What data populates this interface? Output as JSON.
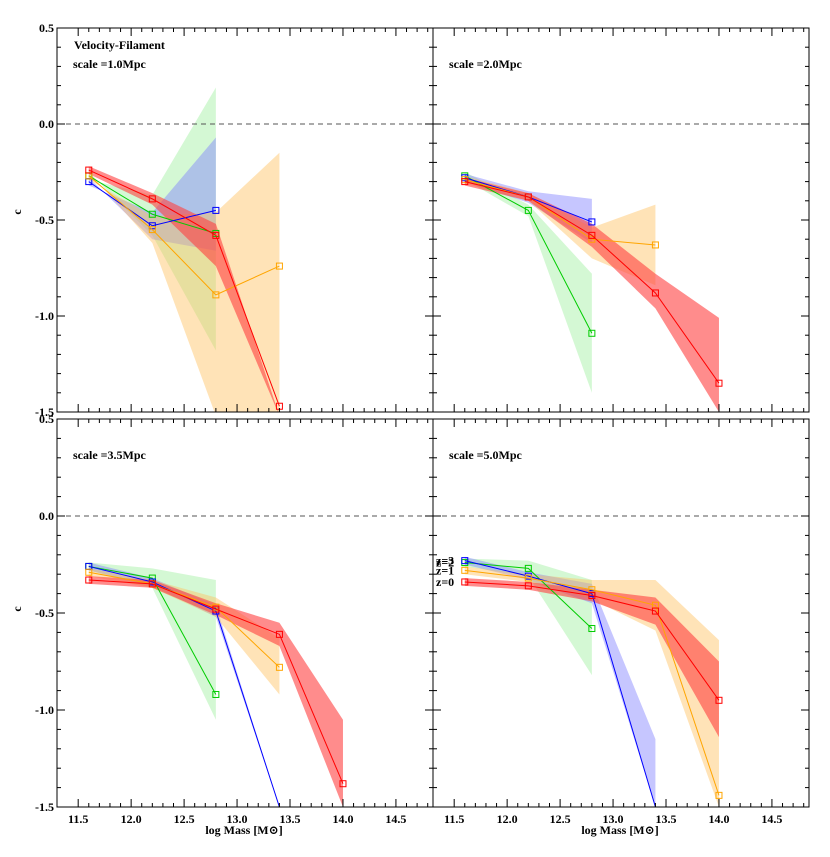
{
  "figure_label": "Velocity-Filament",
  "xlabel": "log Mass [M⊙]",
  "ylabel": "c",
  "colors": {
    "z0": "#ff0000",
    "z1": "#ffa500",
    "z2": "#00cc00",
    "z3": "#0000ff"
  },
  "band_colors": {
    "z0": "#ff4040",
    "z1": "#ffc060",
    "z2": "#a0f0a0",
    "z3": "#8080ff"
  },
  "chart_data": [
    {
      "type": "line",
      "title": "scale =1.0Mpc",
      "xlim": [
        11.3,
        14.85
      ],
      "ylim": [
        -1.5,
        0.5
      ],
      "xticks": [
        "11.5",
        "12.0",
        "12.5",
        "13.0",
        "13.5",
        "14.0",
        "14.5"
      ],
      "yticks": [
        "0.5",
        "0.0",
        "-0.5",
        "-1.0",
        "-1.5"
      ],
      "reference_line": 0.0,
      "series": [
        {
          "name": "z=2",
          "key": "z2",
          "x": [
            11.6,
            12.2,
            12.8
          ],
          "values": [
            -0.27,
            -0.47,
            -0.57
          ],
          "band_low": [
            -0.25,
            -0.58,
            -1.18
          ],
          "band_high": [
            -0.29,
            -0.37,
            0.19
          ]
        },
        {
          "name": "z=3",
          "key": "z3",
          "x": [
            11.6,
            12.2,
            12.8
          ],
          "values": [
            -0.3,
            -0.53,
            -0.45
          ],
          "band_low": [
            -0.28,
            -0.6,
            -0.66
          ],
          "band_high": [
            -0.32,
            -0.46,
            -0.07
          ]
        },
        {
          "name": "z=1",
          "key": "z1",
          "x": [
            11.6,
            12.2,
            12.8,
            13.4
          ],
          "values": [
            -0.27,
            -0.55,
            -0.89,
            -0.74
          ],
          "band_low": [
            -0.25,
            -0.62,
            -1.52,
            -1.52
          ],
          "band_high": [
            -0.29,
            -0.48,
            -0.46,
            -0.15
          ]
        },
        {
          "name": "z=0",
          "key": "z0",
          "x": [
            11.6,
            12.2,
            12.8,
            13.4
          ],
          "values": [
            -0.24,
            -0.39,
            -0.58,
            -1.47
          ],
          "band_low": [
            -0.22,
            -0.36,
            -0.52,
            -1.52
          ],
          "band_high": [
            -0.26,
            -0.42,
            -0.74,
            -1.52
          ]
        }
      ]
    },
    {
      "type": "line",
      "title": "scale =2.0Mpc",
      "xlim": [
        11.3,
        14.85
      ],
      "ylim": [
        -1.5,
        0.5
      ],
      "xticks": [
        "11.5",
        "12.0",
        "12.5",
        "13.0",
        "13.5",
        "14.0",
        "14.5"
      ],
      "yticks": [],
      "reference_line": 0.0,
      "series": [
        {
          "name": "z=2",
          "key": "z2",
          "x": [
            11.6,
            12.2,
            12.8
          ],
          "values": [
            -0.27,
            -0.45,
            -1.09
          ],
          "band_low": [
            -0.25,
            -0.42,
            -0.78
          ],
          "band_high": [
            -0.29,
            -0.48,
            -1.4
          ]
        },
        {
          "name": "z=3",
          "key": "z3",
          "x": [
            11.6,
            12.2,
            12.8
          ],
          "values": [
            -0.28,
            -0.38,
            -0.51
          ],
          "band_low": [
            -0.26,
            -0.35,
            -0.39
          ],
          "band_high": [
            -0.3,
            -0.41,
            -0.62
          ]
        },
        {
          "name": "z=1",
          "key": "z1",
          "x": [
            11.6,
            12.2,
            12.8,
            13.4
          ],
          "values": [
            -0.29,
            -0.38,
            -0.6,
            -0.63
          ],
          "band_low": [
            -0.27,
            -0.36,
            -0.54,
            -0.42
          ],
          "band_high": [
            -0.31,
            -0.4,
            -0.7,
            -0.84
          ]
        },
        {
          "name": "z=0",
          "key": "z0",
          "x": [
            11.6,
            12.2,
            12.8,
            13.4,
            14.0
          ],
          "values": [
            -0.3,
            -0.38,
            -0.58,
            -0.88,
            -1.35
          ],
          "band_low": [
            -0.28,
            -0.36,
            -0.52,
            -0.78,
            -1.01
          ],
          "band_high": [
            -0.32,
            -0.4,
            -0.64,
            -0.96,
            -1.5
          ]
        }
      ]
    },
    {
      "type": "line",
      "title": "scale =3.5Mpc",
      "xlim": [
        11.3,
        14.85
      ],
      "ylim": [
        -1.5,
        0.5
      ],
      "xticks": [
        "11.5",
        "12.0",
        "12.5",
        "13.0",
        "13.5",
        "14.0",
        "14.5"
      ],
      "yticks": [
        "0.5",
        "0.0",
        "-0.5",
        "-1.0",
        "-1.5"
      ],
      "reference_line": 0.0,
      "series": [
        {
          "name": "z=2",
          "key": "z2",
          "x": [
            11.6,
            12.2,
            12.8
          ],
          "values": [
            -0.26,
            -0.32,
            -0.92
          ],
          "band_low": [
            -0.24,
            -0.27,
            -0.33
          ],
          "band_high": [
            -0.28,
            -0.37,
            -1.05
          ]
        },
        {
          "name": "z=3",
          "key": "z3",
          "x": [
            11.6,
            12.2,
            12.8,
            13.4
          ],
          "values": [
            -0.26,
            -0.34,
            -0.49,
            -1.5
          ],
          "band_low": [
            -0.24,
            -0.32,
            -0.46,
            -1.5
          ],
          "band_high": [
            -0.28,
            -0.36,
            -0.52,
            -1.5
          ]
        },
        {
          "name": "z=1",
          "key": "z1",
          "x": [
            11.6,
            12.2,
            12.8,
            13.4
          ],
          "values": [
            -0.29,
            -0.35,
            -0.47,
            -0.78
          ],
          "band_low": [
            -0.27,
            -0.33,
            -0.42,
            -0.63
          ],
          "band_high": [
            -0.31,
            -0.37,
            -0.52,
            -0.92
          ]
        },
        {
          "name": "z=0",
          "key": "z0",
          "x": [
            11.6,
            12.2,
            12.8,
            13.4,
            14.0
          ],
          "values": [
            -0.33,
            -0.35,
            -0.48,
            -0.61,
            -1.38
          ],
          "band_low": [
            -0.31,
            -0.33,
            -0.45,
            -0.55,
            -1.05
          ],
          "band_high": [
            -0.35,
            -0.37,
            -0.51,
            -0.67,
            -1.5
          ]
        }
      ]
    },
    {
      "type": "line",
      "title": "scale =5.0Mpc",
      "xlim": [
        11.3,
        14.85
      ],
      "ylim": [
        -1.5,
        0.5
      ],
      "xticks": [
        "11.5",
        "12.0",
        "12.5",
        "13.0",
        "13.5",
        "14.0",
        "14.5"
      ],
      "yticks": [],
      "reference_line": 0.0,
      "legend": [
        "z=3",
        "z=2",
        "z=1",
        "z=0"
      ],
      "series": [
        {
          "name": "z=2",
          "key": "z2",
          "x": [
            11.6,
            12.2,
            12.8
          ],
          "values": [
            -0.24,
            -0.27,
            -0.58
          ],
          "band_low": [
            -0.22,
            -0.23,
            -0.33
          ],
          "band_high": [
            -0.26,
            -0.31,
            -0.82
          ]
        },
        {
          "name": "z=3",
          "key": "z3",
          "x": [
            11.6,
            12.2,
            12.8,
            13.4
          ],
          "values": [
            -0.23,
            -0.31,
            -0.4,
            -1.5
          ],
          "band_low": [
            -0.21,
            -0.29,
            -0.35,
            -1.15
          ],
          "band_high": [
            -0.25,
            -0.33,
            -0.45,
            -1.5
          ]
        },
        {
          "name": "z=1",
          "key": "z1",
          "x": [
            11.6,
            12.2,
            12.8,
            13.4,
            14.0
          ],
          "values": [
            -0.28,
            -0.32,
            -0.38,
            -0.46,
            -1.44
          ],
          "band_low": [
            -0.26,
            -0.3,
            -0.33,
            -0.33,
            -0.64
          ],
          "band_high": [
            -0.3,
            -0.34,
            -0.43,
            -0.59,
            -1.5
          ]
        },
        {
          "name": "z=0",
          "key": "z0",
          "x": [
            11.6,
            12.2,
            12.8,
            13.4,
            14.0
          ],
          "values": [
            -0.34,
            -0.36,
            -0.41,
            -0.49,
            -0.95
          ],
          "band_low": [
            -0.32,
            -0.34,
            -0.38,
            -0.42,
            -0.75
          ],
          "band_high": [
            -0.36,
            -0.38,
            -0.44,
            -0.56,
            -1.14
          ]
        }
      ]
    }
  ]
}
